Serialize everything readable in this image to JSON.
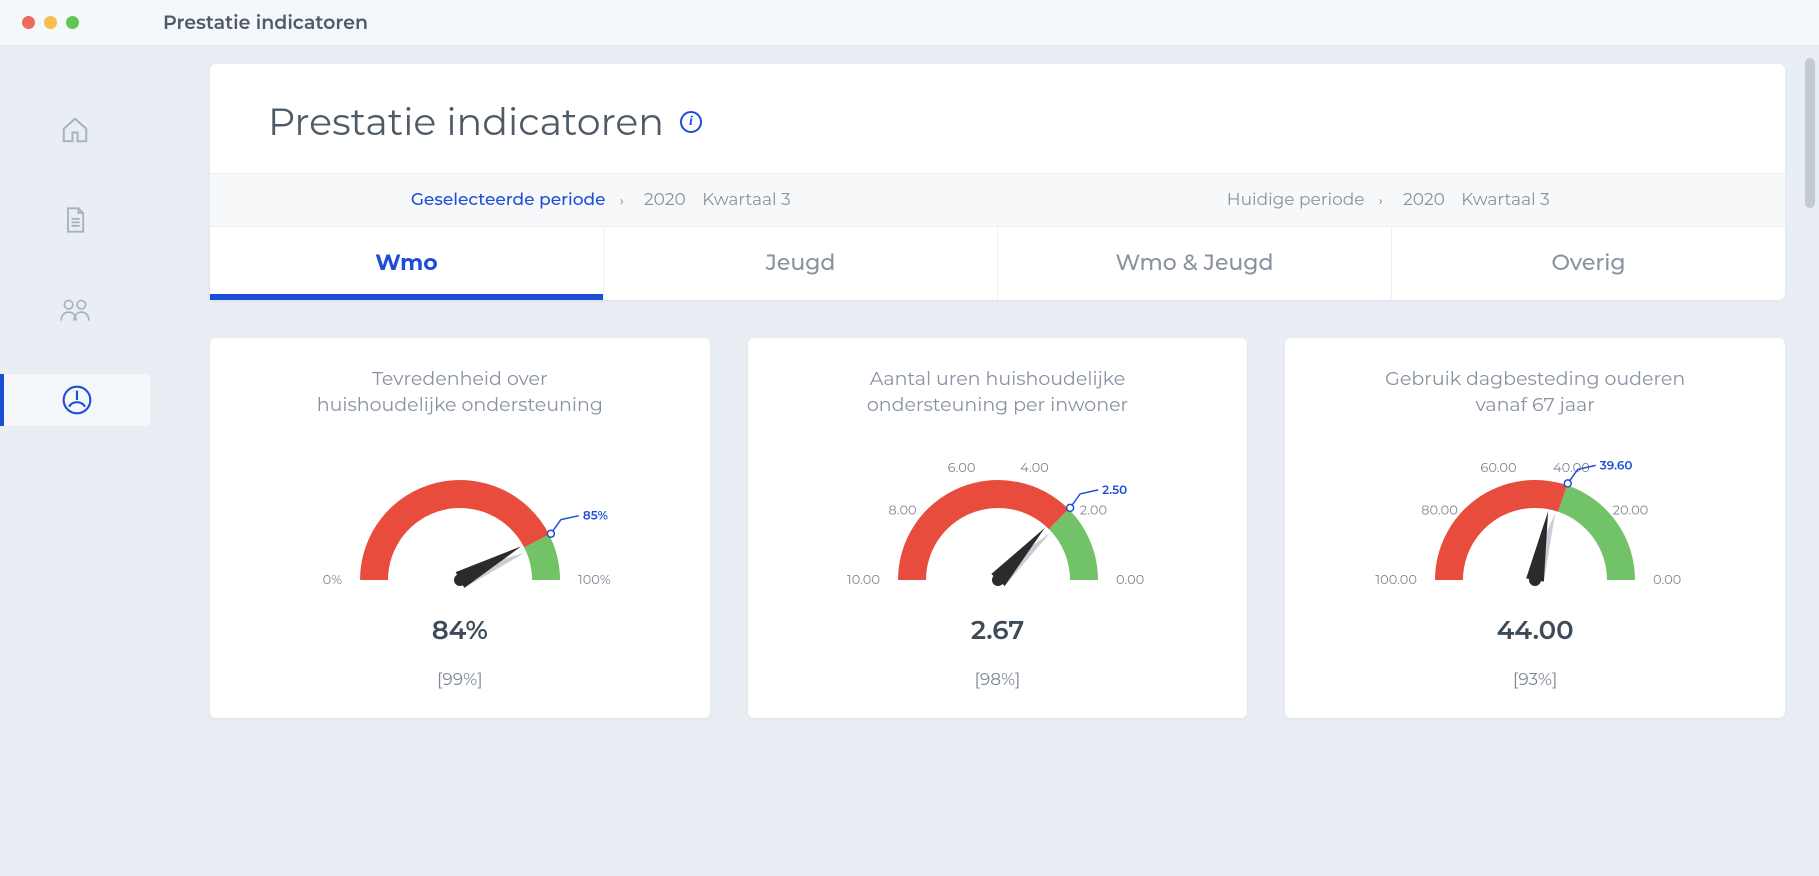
{
  "window": {
    "title": "Prestatie indicatoren"
  },
  "colors": {
    "accent": "#1d4ed8",
    "background": "#e9eef4",
    "card": "#ffffff",
    "text_muted": "#8892a0",
    "text": "#4e5b67",
    "gauge_red": "#e84c3d",
    "gauge_green": "#72c267",
    "needle": "#2b2b2b",
    "marker": "#1d4ed8",
    "tick_text": "#7c8794"
  },
  "sidebar": {
    "items": [
      {
        "name": "home",
        "active": false
      },
      {
        "name": "reports",
        "active": false
      },
      {
        "name": "people",
        "active": false
      },
      {
        "name": "gauge",
        "active": true
      }
    ]
  },
  "header": {
    "title": "Prestatie indicatoren"
  },
  "period": {
    "selected": {
      "label": "Geselecteerde periode",
      "year": "2020",
      "quarter": "Kwartaal 3"
    },
    "current": {
      "label": "Huidige periode",
      "year": "2020",
      "quarter": "Kwartaal 3"
    }
  },
  "tabs": [
    {
      "label": "Wmo",
      "active": true
    },
    {
      "label": "Jeugd",
      "active": false
    },
    {
      "label": "Wmo & Jeugd",
      "active": false
    },
    {
      "label": "Overig",
      "active": false
    }
  ],
  "gauges": [
    {
      "title": "Tevredenheid over huishoudelijke ondersteuning",
      "type": "gauge",
      "range": [
        0,
        100
      ],
      "reversed": false,
      "threshold": 85,
      "threshold_label": "85%",
      "value": 84,
      "value_label": "84%",
      "bracket": "[99%]",
      "ticks": [
        {
          "value": 0,
          "label": "0%"
        },
        {
          "value": 100,
          "label": "100%"
        }
      ],
      "arc_width": 28,
      "colors": {
        "below": "#e84c3d",
        "above": "#72c267",
        "needle": "#2b2b2b",
        "marker": "#1d4ed8"
      }
    },
    {
      "title": "Aantal uren huishoudelijke ondersteuning per inwoner",
      "type": "gauge",
      "range": [
        0,
        10
      ],
      "reversed": true,
      "threshold": 2.5,
      "threshold_label": "2.50",
      "value": 2.67,
      "value_label": "2.67",
      "bracket": "[98%]",
      "ticks": [
        {
          "value": 10,
          "label": "10.00"
        },
        {
          "value": 8,
          "label": "8.00"
        },
        {
          "value": 6,
          "label": "6.00"
        },
        {
          "value": 4,
          "label": "4.00"
        },
        {
          "value": 2,
          "label": "2.00"
        },
        {
          "value": 0,
          "label": "0.00"
        }
      ],
      "arc_width": 28,
      "colors": {
        "below": "#e84c3d",
        "above": "#72c267",
        "needle": "#2b2b2b",
        "marker": "#1d4ed8"
      }
    },
    {
      "title": "Gebruik dagbesteding ouderen vanaf 67 jaar",
      "type": "gauge",
      "range": [
        0,
        100
      ],
      "reversed": true,
      "threshold": 39.6,
      "threshold_label": "39.60",
      "value": 44,
      "value_label": "44.00",
      "bracket": "[93%]",
      "ticks": [
        {
          "value": 100,
          "label": "100.00"
        },
        {
          "value": 80,
          "label": "80.00"
        },
        {
          "value": 60,
          "label": "60.00"
        },
        {
          "value": 40,
          "label": "40.00"
        },
        {
          "value": 20,
          "label": "20.00"
        },
        {
          "value": 0,
          "label": "0.00"
        }
      ],
      "arc_width": 28,
      "colors": {
        "below": "#e84c3d",
        "above": "#72c267",
        "needle": "#2b2b2b",
        "marker": "#1d4ed8"
      }
    }
  ]
}
